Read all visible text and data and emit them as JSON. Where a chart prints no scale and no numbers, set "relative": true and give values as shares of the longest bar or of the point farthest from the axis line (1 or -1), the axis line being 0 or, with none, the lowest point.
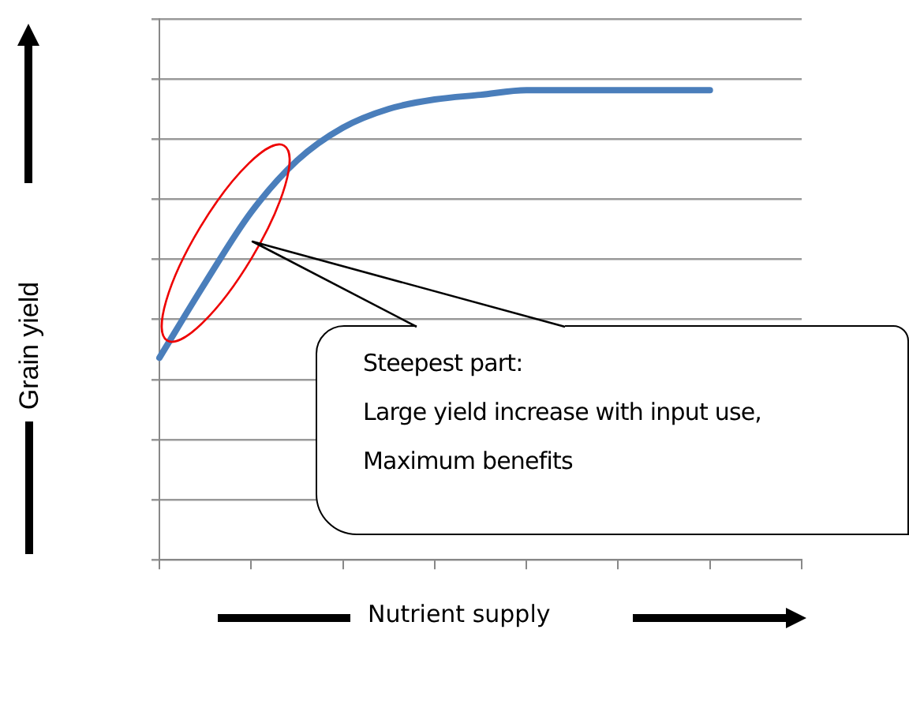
{
  "chart_data": {
    "type": "line",
    "xlabel": "Nutrient supply",
    "ylabel": "Grain yield",
    "relative": true,
    "grid": "y",
    "marker": "none",
    "line_style": "solid",
    "categories": [
      null,
      null,
      null,
      null,
      null,
      null,
      null,
      null,
      null,
      null,
      null,
      null,
      null,
      null,
      null
    ],
    "series": [
      {
        "color": "#4a7ebb",
        "values": [
          0.43,
          0.59,
          0.74,
          0.85,
          0.92,
          0.96,
          0.98,
          0.99,
          1,
          1,
          1,
          1,
          1,
          null,
          null
        ]
      }
    ],
    "annotations": [
      "Steepest part:\nLarge yield increase with input use,\nMaximum benefits"
    ]
  }
}
